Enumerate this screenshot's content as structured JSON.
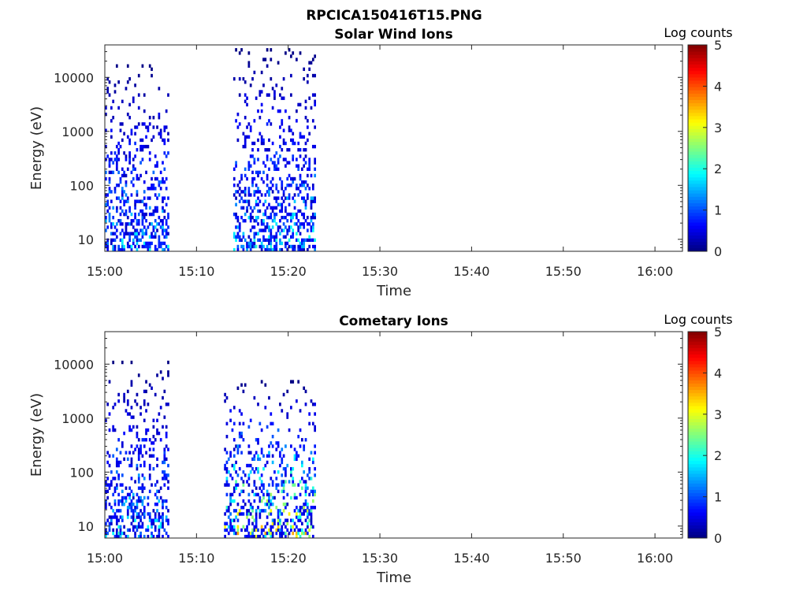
{
  "figure": {
    "title": "RPCICA150416T15.PNG"
  },
  "chart_data": [
    {
      "type": "heatmap",
      "title": "Solar Wind Ions",
      "xlabel": "Time",
      "ylabel": "Energy (eV)",
      "x_ticks": [
        "15:00",
        "15:10",
        "15:20",
        "15:30",
        "15:40",
        "15:50",
        "16:00"
      ],
      "y_ticks": [
        "10",
        "100",
        "1000",
        "10000"
      ],
      "y_scale": "log",
      "ylim": [
        6,
        40000
      ],
      "xlim": [
        "15:00",
        "16:03"
      ],
      "colorbar": {
        "label": "Log counts",
        "ticks": [
          "0",
          "1",
          "2",
          "3",
          "4",
          "5"
        ],
        "range": [
          0,
          5
        ],
        "colormap": "jet"
      },
      "activity_windows": [
        {
          "start": "15:00",
          "end": "15:07",
          "energy_range_eV": [
            6,
            20000
          ],
          "max_log_counts": 2.0
        },
        {
          "start": "15:14",
          "end": "15:23",
          "energy_range_eV": [
            6,
            35000
          ],
          "max_log_counts": 2.2
        }
      ]
    },
    {
      "type": "heatmap",
      "title": "Cometary Ions",
      "xlabel": "Time",
      "ylabel": "Energy (eV)",
      "x_ticks": [
        "15:00",
        "15:10",
        "15:20",
        "15:30",
        "15:40",
        "15:50",
        "16:00"
      ],
      "y_ticks": [
        "10",
        "100",
        "1000",
        "10000"
      ],
      "y_scale": "log",
      "ylim": [
        6,
        40000
      ],
      "xlim": [
        "15:00",
        "16:03"
      ],
      "colorbar": {
        "label": "Log counts",
        "ticks": [
          "0",
          "1",
          "2",
          "3",
          "4",
          "5"
        ],
        "range": [
          0,
          5
        ],
        "colormap": "jet"
      },
      "activity_windows": [
        {
          "start": "15:00",
          "end": "15:07",
          "energy_range_eV": [
            6,
            12000
          ],
          "max_log_counts": 2.2
        },
        {
          "start": "15:13",
          "end": "15:23",
          "energy_range_eV": [
            6,
            5000
          ],
          "max_log_counts": 3.8
        }
      ]
    }
  ]
}
